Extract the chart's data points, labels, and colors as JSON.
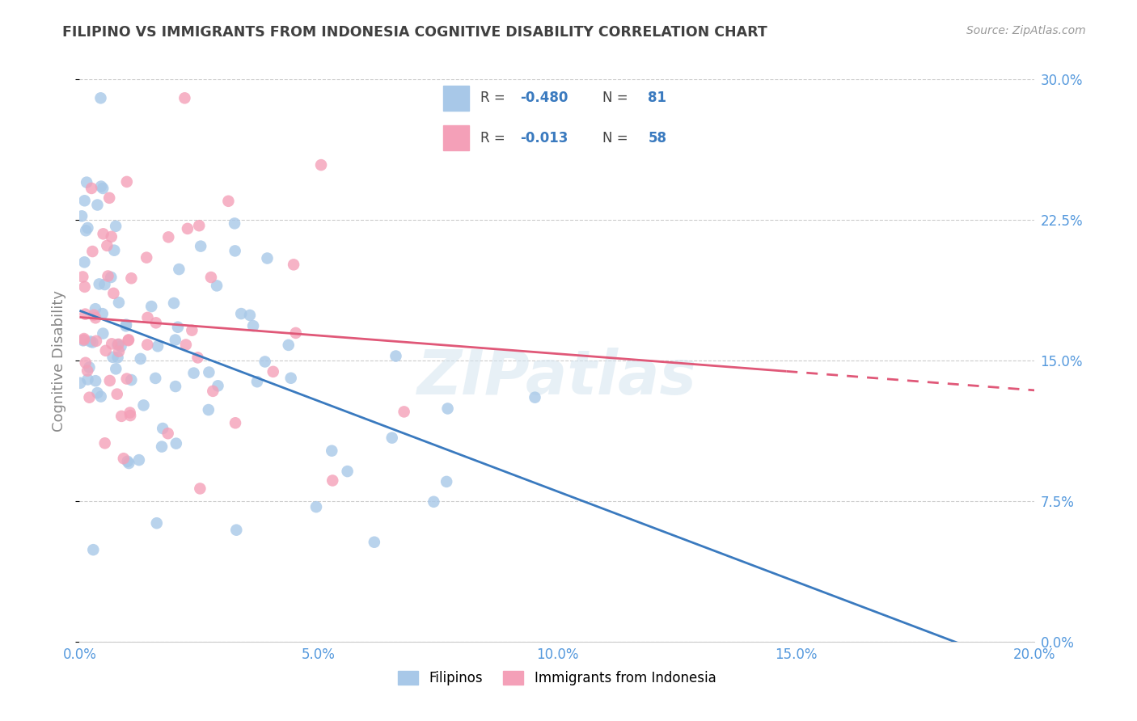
{
  "title": "FILIPINO VS IMMIGRANTS FROM INDONESIA COGNITIVE DISABILITY CORRELATION CHART",
  "source": "Source: ZipAtlas.com",
  "ylabel": "Cognitive Disability",
  "xlim": [
    0.0,
    0.2
  ],
  "ylim": [
    0.0,
    0.3
  ],
  "xticks": [
    0.0,
    0.05,
    0.1,
    0.15,
    0.2
  ],
  "yticks": [
    0.0,
    0.075,
    0.15,
    0.225,
    0.3
  ],
  "series1_color": "#a8c8e8",
  "series2_color": "#f4a0b8",
  "line1_color": "#3a7abf",
  "line2_color": "#e05878",
  "legend1_label": "Filipinos",
  "legend2_label": "Immigrants from Indonesia",
  "r1": -0.48,
  "n1": 81,
  "r2": -0.013,
  "n2": 58,
  "watermark": "ZIPatlas",
  "background_color": "#ffffff",
  "grid_color": "#cccccc",
  "title_color": "#404040",
  "axis_label_color": "#888888",
  "tick_color": "#5599dd",
  "seed1": 42,
  "seed2": 77
}
